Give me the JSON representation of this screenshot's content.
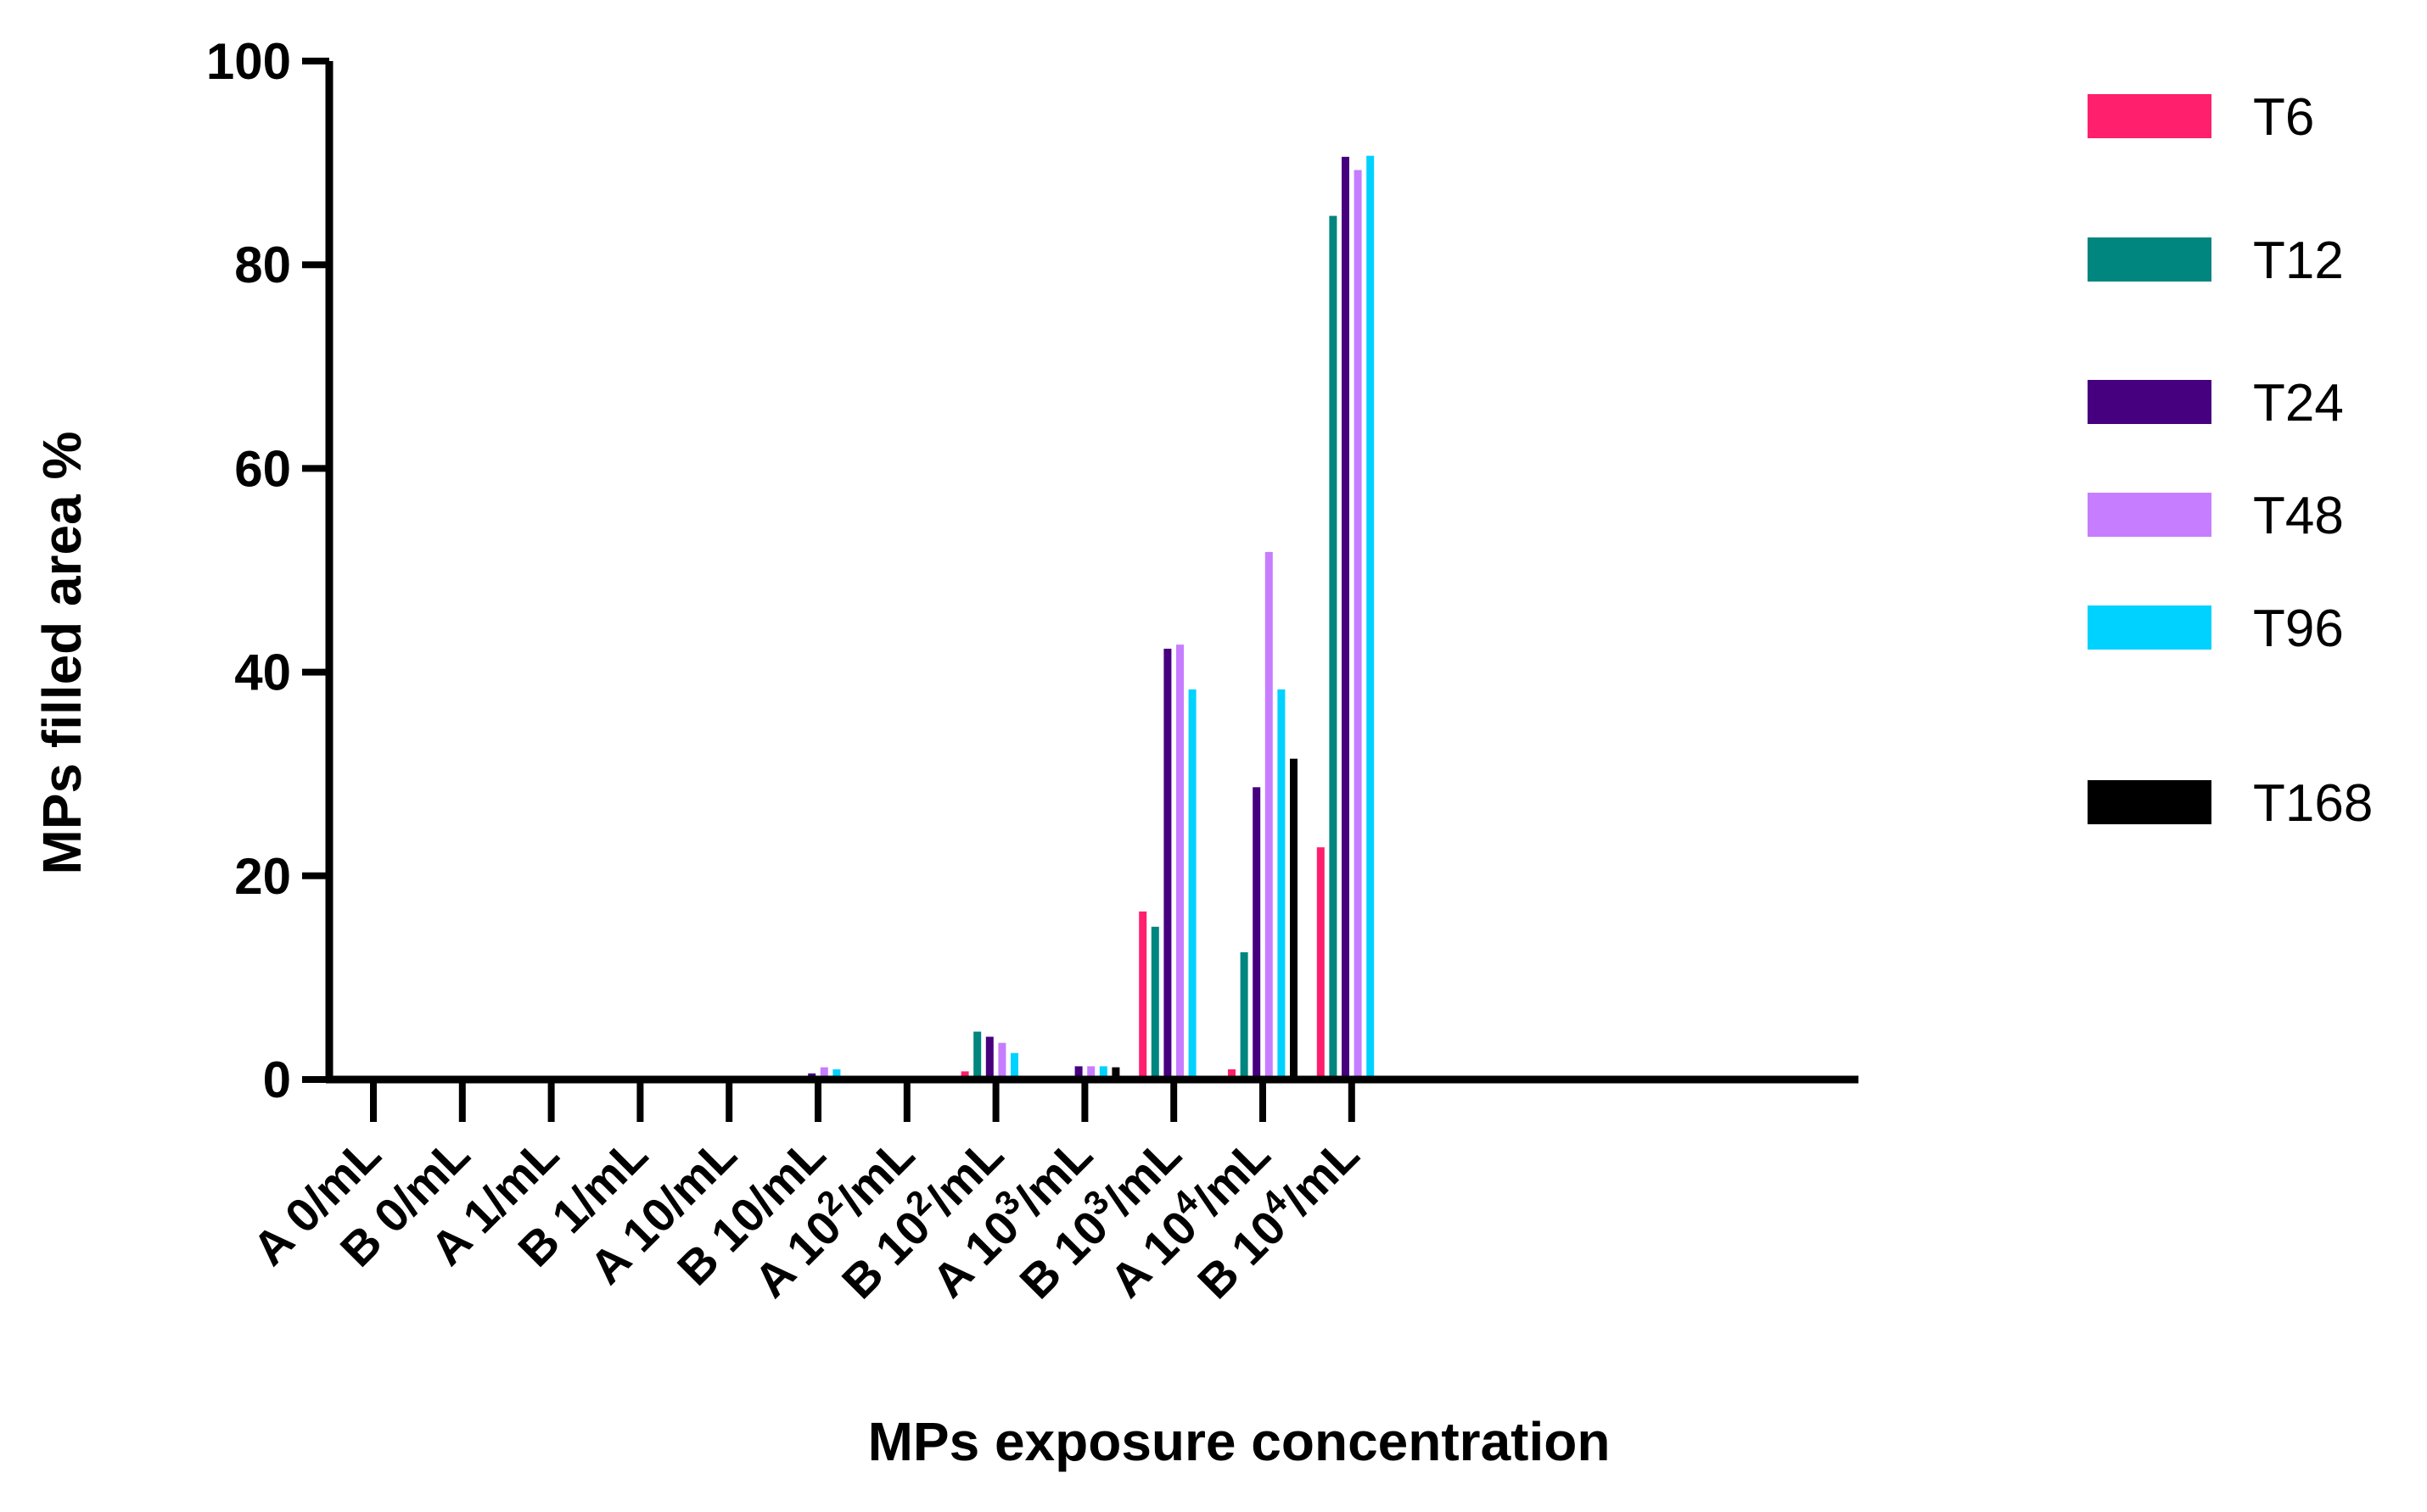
{
  "chart_data": {
    "type": "bar",
    "title": "",
    "xlabel": "MPs exposure concentration",
    "ylabel": "MPs filled area %",
    "ylim": [
      0,
      100
    ],
    "yticks": [
      "0",
      "20",
      "40",
      "60",
      "80",
      "100"
    ],
    "grid": false,
    "legend_position": "right",
    "categories": [
      {
        "prefix": "A 0/mL",
        "exp": "",
        "suffix": ""
      },
      {
        "prefix": "B 0/mL",
        "exp": "",
        "suffix": ""
      },
      {
        "prefix": "A 1/mL",
        "exp": "",
        "suffix": ""
      },
      {
        "prefix": "B 1/mL",
        "exp": "",
        "suffix": ""
      },
      {
        "prefix": "A 10/mL",
        "exp": "",
        "suffix": ""
      },
      {
        "prefix": "B 10/mL",
        "exp": "",
        "suffix": ""
      },
      {
        "prefix": "A 10",
        "exp": "2",
        "suffix": "/mL"
      },
      {
        "prefix": "B 10",
        "exp": "2",
        "suffix": "/mL"
      },
      {
        "prefix": "A 10",
        "exp": "3",
        "suffix": "/mL"
      },
      {
        "prefix": "B 10",
        "exp": "3",
        "suffix": "/mL"
      },
      {
        "prefix": "A 10",
        "exp": "4",
        "suffix": "/mL"
      },
      {
        "prefix": "B 10",
        "exp": "4",
        "suffix": "/mL"
      }
    ],
    "series": [
      {
        "name": "T6",
        "color": "#ff1f6d",
        "values": [
          0,
          0,
          0,
          0,
          0,
          0,
          0,
          0.8,
          0,
          16.5,
          1,
          22.8
        ]
      },
      {
        "name": "T12",
        "color": "#00857f",
        "values": [
          0,
          0,
          0,
          0,
          0,
          0,
          0,
          4.7,
          0,
          15,
          12.5,
          84.8
        ]
      },
      {
        "name": "T24",
        "color": "#46007f",
        "values": [
          0,
          0,
          0,
          0,
          0,
          0.6,
          0,
          4.2,
          1.3,
          42.3,
          28.7,
          90.6
        ]
      },
      {
        "name": "T48",
        "color": "#c77dff",
        "values": [
          0,
          0,
          0,
          0,
          0,
          1.2,
          0,
          3.6,
          1.3,
          42.7,
          51.8,
          89.3
        ]
      },
      {
        "name": "T96",
        "color": "#00d2ff",
        "values": [
          0,
          0,
          0,
          0,
          0,
          1,
          0,
          2.6,
          1.3,
          38.3,
          38.3,
          90.7
        ]
      },
      {
        "name": "T168",
        "color": "#000000",
        "values": [
          0,
          0,
          0,
          0,
          0,
          0,
          0,
          0,
          1.2,
          0,
          31.5,
          0
        ]
      }
    ]
  }
}
